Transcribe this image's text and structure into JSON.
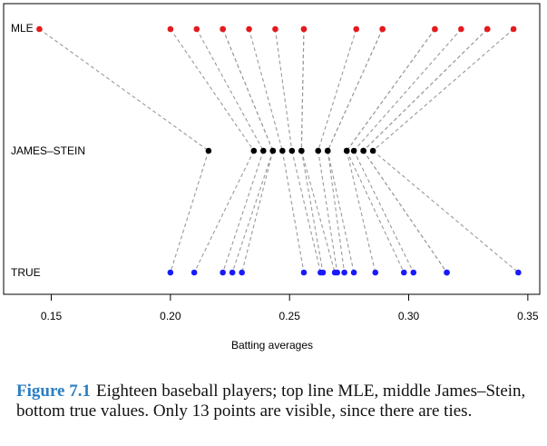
{
  "chart_data": {
    "type": "scatter",
    "xlabel": "Batting averages",
    "xlim": [
      0.13,
      0.355
    ],
    "xticks": [
      {
        "value": 0.15,
        "label": "0.15"
      },
      {
        "value": 0.2,
        "label": "0.20"
      },
      {
        "value": 0.25,
        "label": "0.25"
      },
      {
        "value": 0.3,
        "label": "0.30"
      },
      {
        "value": 0.35,
        "label": "0.35"
      }
    ],
    "rows": [
      {
        "name": "MLE",
        "color": "#e41a1c"
      },
      {
        "name": "JAMES–STEIN",
        "color": "#000000"
      },
      {
        "name": "TRUE",
        "color": "#1a1aff"
      }
    ],
    "line_color": "#999999",
    "players": [
      {
        "mle": 0.145,
        "js": 0.216,
        "true": 0.2
      },
      {
        "mle": 0.2,
        "js": 0.235,
        "true": 0.21
      },
      {
        "mle": 0.211,
        "js": 0.239,
        "true": 0.222
      },
      {
        "mle": 0.222,
        "js": 0.243,
        "true": 0.226
      },
      {
        "mle": 0.222,
        "js": 0.243,
        "true": 0.23
      },
      {
        "mle": 0.233,
        "js": 0.247,
        "true": 0.256
      },
      {
        "mle": 0.244,
        "js": 0.251,
        "true": 0.263
      },
      {
        "mle": 0.256,
        "js": 0.255,
        "true": 0.264
      },
      {
        "mle": 0.256,
        "js": 0.255,
        "true": 0.269
      },
      {
        "mle": 0.278,
        "js": 0.262,
        "true": 0.27
      },
      {
        "mle": 0.289,
        "js": 0.266,
        "true": 0.273
      },
      {
        "mle": 0.289,
        "js": 0.266,
        "true": 0.277
      },
      {
        "mle": 0.311,
        "js": 0.274,
        "true": 0.286
      },
      {
        "mle": 0.311,
        "js": 0.274,
        "true": 0.298
      },
      {
        "mle": 0.322,
        "js": 0.277,
        "true": 0.302
      },
      {
        "mle": 0.333,
        "js": 0.281,
        "true": 0.316
      },
      {
        "mle": 0.333,
        "js": 0.281,
        "true": 0.316
      },
      {
        "mle": 0.344,
        "js": 0.285,
        "true": 0.346
      }
    ]
  },
  "caption": {
    "label": "Figure 7.1",
    "text": "Eighteen baseball players; top line MLE, middle James–Stein, bottom true values. Only 13 points are visible, since there are ties."
  }
}
